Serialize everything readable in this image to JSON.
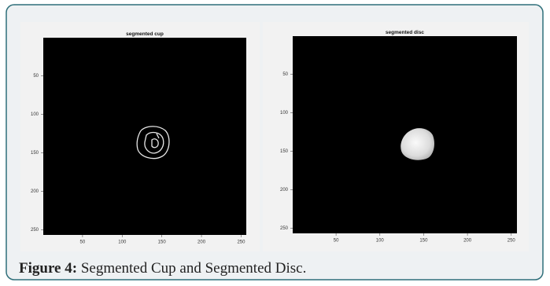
{
  "panels": [
    {
      "title": "segmented cup",
      "xlim": [
        0.5,
        256.5
      ],
      "ylim": [
        0.5,
        256.5
      ],
      "xticks": [
        50,
        100,
        150,
        200,
        250
      ],
      "yticks": [
        50,
        100,
        150,
        200,
        250
      ]
    },
    {
      "title": "segmented disc",
      "xlim": [
        0.5,
        256.5
      ],
      "ylim": [
        0.5,
        256.5
      ],
      "xticks": [
        50,
        100,
        150,
        200,
        250
      ],
      "yticks": [
        50,
        100,
        150,
        200,
        250
      ]
    }
  ],
  "caption": {
    "label": "Figure 4:",
    "text": "Segmented Cup and Segmented Disc."
  }
}
